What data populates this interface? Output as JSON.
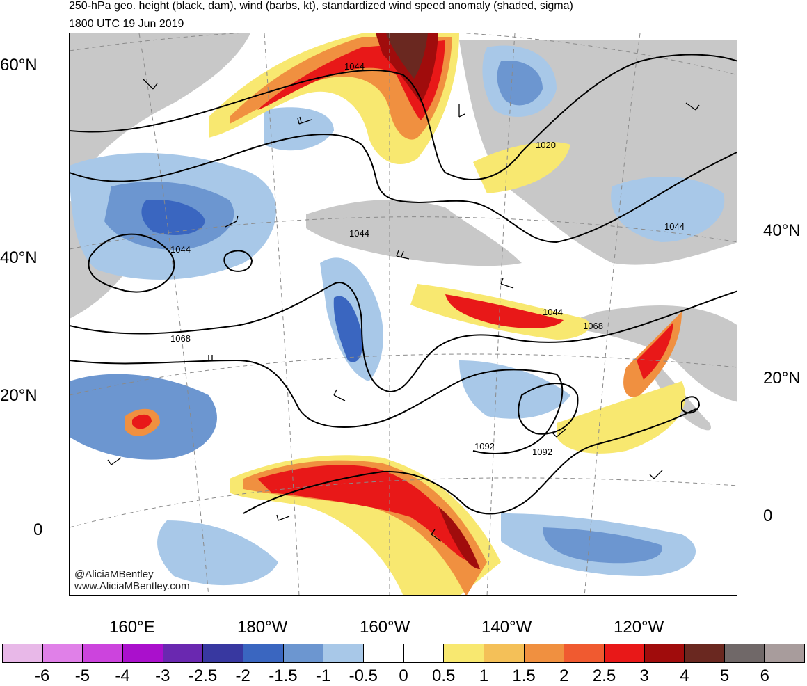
{
  "header": {
    "title": "250-hPa geo. height (black, dam), wind (barbs, kt), standardized wind speed anomaly (shaded, sigma)",
    "valid_time": "1800 UTC 19 Jun 2019"
  },
  "axes": {
    "left_lat_labels": [
      "60°N",
      "40°N",
      "20°N",
      "0"
    ],
    "right_lat_labels": [
      "40°N",
      "20°N",
      "0"
    ],
    "lon_labels": [
      "160°E",
      "180°W",
      "160°W",
      "140°W",
      "120°W"
    ]
  },
  "contour_labels": [
    "1044",
    "1020",
    "1044",
    "1044",
    "1044",
    "1068",
    "1044",
    "1068",
    "1092",
    "1092"
  ],
  "watermark": {
    "handle": "@AliciaMBentley",
    "site": "www.AliciaMBentley.com"
  },
  "colorbar": {
    "labels": [
      "-6",
      "-5",
      "-4",
      "-3",
      "-2.5",
      "-2",
      "-1.5",
      "-1",
      "-0.5",
      "0",
      "0.5",
      "1",
      "1.5",
      "2",
      "2.5",
      "3",
      "4",
      "5",
      "6"
    ],
    "colors": [
      "#e8b8e8",
      "#e080e8",
      "#cc44dd",
      "#aa10cc",
      "#6a28b0",
      "#3838a0",
      "#3a66c0",
      "#6c96d0",
      "#a8c8e8",
      "#ffffff",
      "#ffffff",
      "#f8e870",
      "#f4c058",
      "#f09040",
      "#f05a30",
      "#e81818",
      "#a00c0c",
      "#6a2820",
      "#706868",
      "#a89c9c"
    ]
  },
  "map_colors": {
    "land": "#c8c8c8",
    "contour": "#000000",
    "anomaly_pos_strong": "#a00c0c",
    "anomaly_pos": "#f05a30",
    "anomaly_weak": "#f8e870",
    "anomaly_neg": "#3a66c0",
    "anomaly_neg_weak": "#a8c8e8"
  }
}
